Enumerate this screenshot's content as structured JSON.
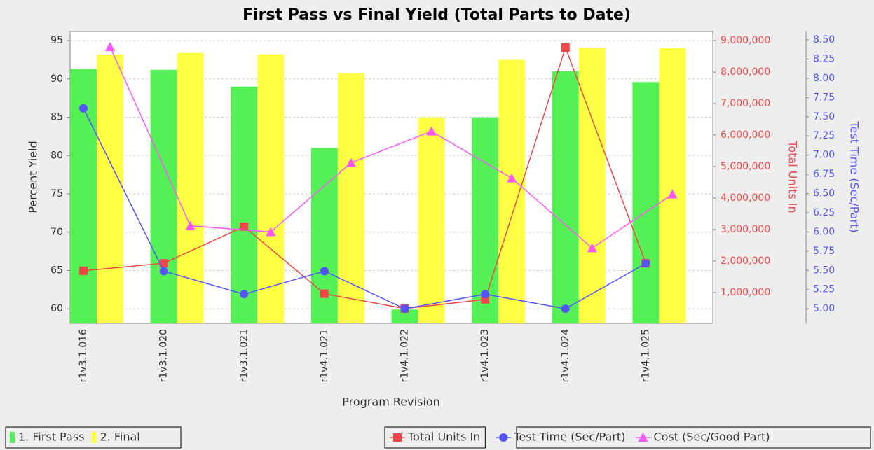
{
  "chart_data": {
    "type": "bar",
    "title": "First Pass vs Final Yield (Total Parts to Date)",
    "x_label": "Program Revision",
    "y_label": "Percent Yield",
    "y2_label": "Total Units In",
    "y3_label": "Test Time (Sec/Part)",
    "categories": [
      "r1v3.1.016",
      "r1v3.1.020",
      "r1v3.1.021",
      "r1v4.1.021",
      "r1v4.1.022",
      "r1v4.1.023",
      "r1v4.1.024",
      "r1v4.1.025"
    ],
    "series": [
      {
        "name": "1. First Pass",
        "type": "bar",
        "color": "#55f055",
        "values": [
          91.3,
          91.2,
          89.0,
          81.0,
          59.9,
          85.0,
          91.0,
          89.6
        ]
      },
      {
        "name": "2. Final",
        "type": "bar",
        "color": "#ffff44",
        "values": [
          93.2,
          93.4,
          93.2,
          90.8,
          85.0,
          92.5,
          94.1,
          94.0
        ]
      },
      {
        "name": "Total Units In",
        "type": "line",
        "axis": "y2",
        "marker": "square",
        "color": "#f04848",
        "values": [
          1690000,
          1930000,
          3090000,
          960000,
          490000,
          780000,
          8780000,
          1930000
        ]
      },
      {
        "name": "Test Time (Sec/Part)",
        "type": "line",
        "axis": "y3",
        "marker": "circle",
        "color": "#5555ff",
        "values": [
          7.61,
          5.49,
          5.19,
          5.49,
          5.0,
          5.19,
          5.0,
          5.59
        ]
      },
      {
        "name": "Cost (Sec/Good Part)",
        "type": "line",
        "axis": "y3",
        "marker": "triangle",
        "color": "#ff55ff",
        "values": [
          8.41,
          6.08,
          6.0,
          6.9,
          7.31,
          6.7,
          5.79,
          6.49
        ]
      }
    ],
    "ylim": [
      58.1,
      96.2
    ],
    "yticks": [
      60,
      65,
      70,
      75,
      80,
      85,
      90,
      95
    ],
    "y2lim": [
      20000,
      9290000
    ],
    "y2ticks": [
      {
        "value": 1000000,
        "label": "1,000,000"
      },
      {
        "value": 2000000,
        "label": "2,000,000"
      },
      {
        "value": 3000000,
        "label": "3,000,000"
      },
      {
        "value": 4000000,
        "label": "4,000,000"
      },
      {
        "value": 5000000,
        "label": "5,000,000"
      },
      {
        "value": 6000000,
        "label": "6,000,000"
      },
      {
        "value": 7000000,
        "label": "7,000,000"
      },
      {
        "value": 8000000,
        "label": "8,000,000"
      },
      {
        "value": 9000000,
        "label": "9,000,000"
      }
    ],
    "y3lim": [
      4.81,
      8.61
    ],
    "y3ticks": [
      {
        "value": 5,
        "label": "5.00"
      },
      5.25,
      {
        "value": 5.5,
        "label": "5.50"
      },
      5.75,
      {
        "value": 6,
        "label": "6.00"
      },
      6.25,
      {
        "value": 6.5,
        "label": "6.50"
      },
      6.75,
      {
        "value": 7,
        "label": "7.00"
      },
      7.25,
      {
        "value": 7.5,
        "label": "7.50"
      },
      7.75,
      {
        "value": 8,
        "label": "8.00"
      },
      8.25,
      {
        "value": 8.5,
        "label": "8.50"
      }
    ],
    "grid": true
  }
}
